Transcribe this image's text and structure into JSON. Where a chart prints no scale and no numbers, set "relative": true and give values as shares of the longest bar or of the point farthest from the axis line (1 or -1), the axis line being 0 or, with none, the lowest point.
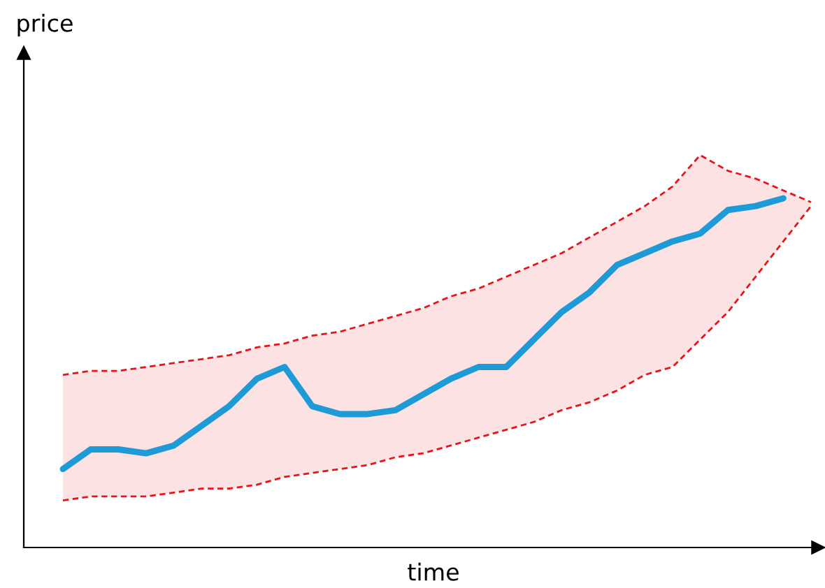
{
  "chart_data": {
    "type": "line",
    "relative": true,
    "xlabel": "time",
    "annotations": [
      "price"
    ],
    "legend": false,
    "categories": [
      null,
      null,
      null,
      null,
      null,
      null,
      null,
      null,
      null,
      null,
      null,
      null,
      null,
      null,
      null,
      null,
      null,
      null,
      null,
      null,
      null,
      null,
      null,
      null,
      null,
      null,
      null,
      null
    ],
    "series": [
      {
        "color": "#e8141c",
        "line_style": "dashed",
        "values": [
          0.44,
          0.45,
          0.45,
          0.46,
          0.47,
          0.48,
          0.49,
          0.51,
          0.52,
          0.54,
          0.55,
          0.57,
          0.59,
          0.61,
          0.64,
          0.66,
          0.69,
          0.72,
          0.75,
          0.79,
          0.83,
          0.87,
          0.92,
          1,
          0.96,
          0.94,
          0.91,
          0.88
        ]
      },
      {
        "color": "#e8141c",
        "line_style": "dashed",
        "values": [
          0.12,
          0.13,
          0.13,
          0.13,
          0.14,
          0.15,
          0.15,
          0.16,
          0.18,
          0.19,
          0.2,
          0.21,
          0.23,
          0.24,
          0.26,
          0.28,
          0.3,
          0.32,
          0.35,
          0.37,
          0.4,
          0.44,
          0.46,
          0.53,
          0.6,
          0.69,
          0.78,
          0.87
        ]
      },
      {
        "color": "#1e9ad6",
        "line_style": "solid",
        "upper": [
          0.44,
          0.45,
          0.45,
          0.46,
          0.47,
          0.48,
          0.49,
          0.51,
          0.52,
          0.54,
          0.55,
          0.57,
          0.59,
          0.61,
          0.64,
          0.66,
          0.69,
          0.72,
          0.75,
          0.79,
          0.83,
          0.87,
          0.92,
          1,
          0.96,
          0.94,
          0.91,
          0.88
        ],
        "lower": [
          0.12,
          0.13,
          0.13,
          0.13,
          0.14,
          0.15,
          0.15,
          0.16,
          0.18,
          0.19,
          0.2,
          0.21,
          0.23,
          0.24,
          0.26,
          0.28,
          0.3,
          0.32,
          0.35,
          0.37,
          0.4,
          0.44,
          0.46,
          0.53,
          0.6,
          0.69,
          0.78,
          0.87
        ],
        "values": [
          0.2,
          0.25,
          0.25,
          0.24,
          0.26,
          0.31,
          0.36,
          0.43,
          0.46,
          0.36,
          0.34,
          0.34,
          0.35,
          0.39,
          0.43,
          0.46,
          0.46,
          0.53,
          0.6,
          0.65,
          0.72,
          0.75,
          0.78,
          0.8,
          0.86,
          0.87,
          0.89,
          null
        ]
      }
    ]
  }
}
